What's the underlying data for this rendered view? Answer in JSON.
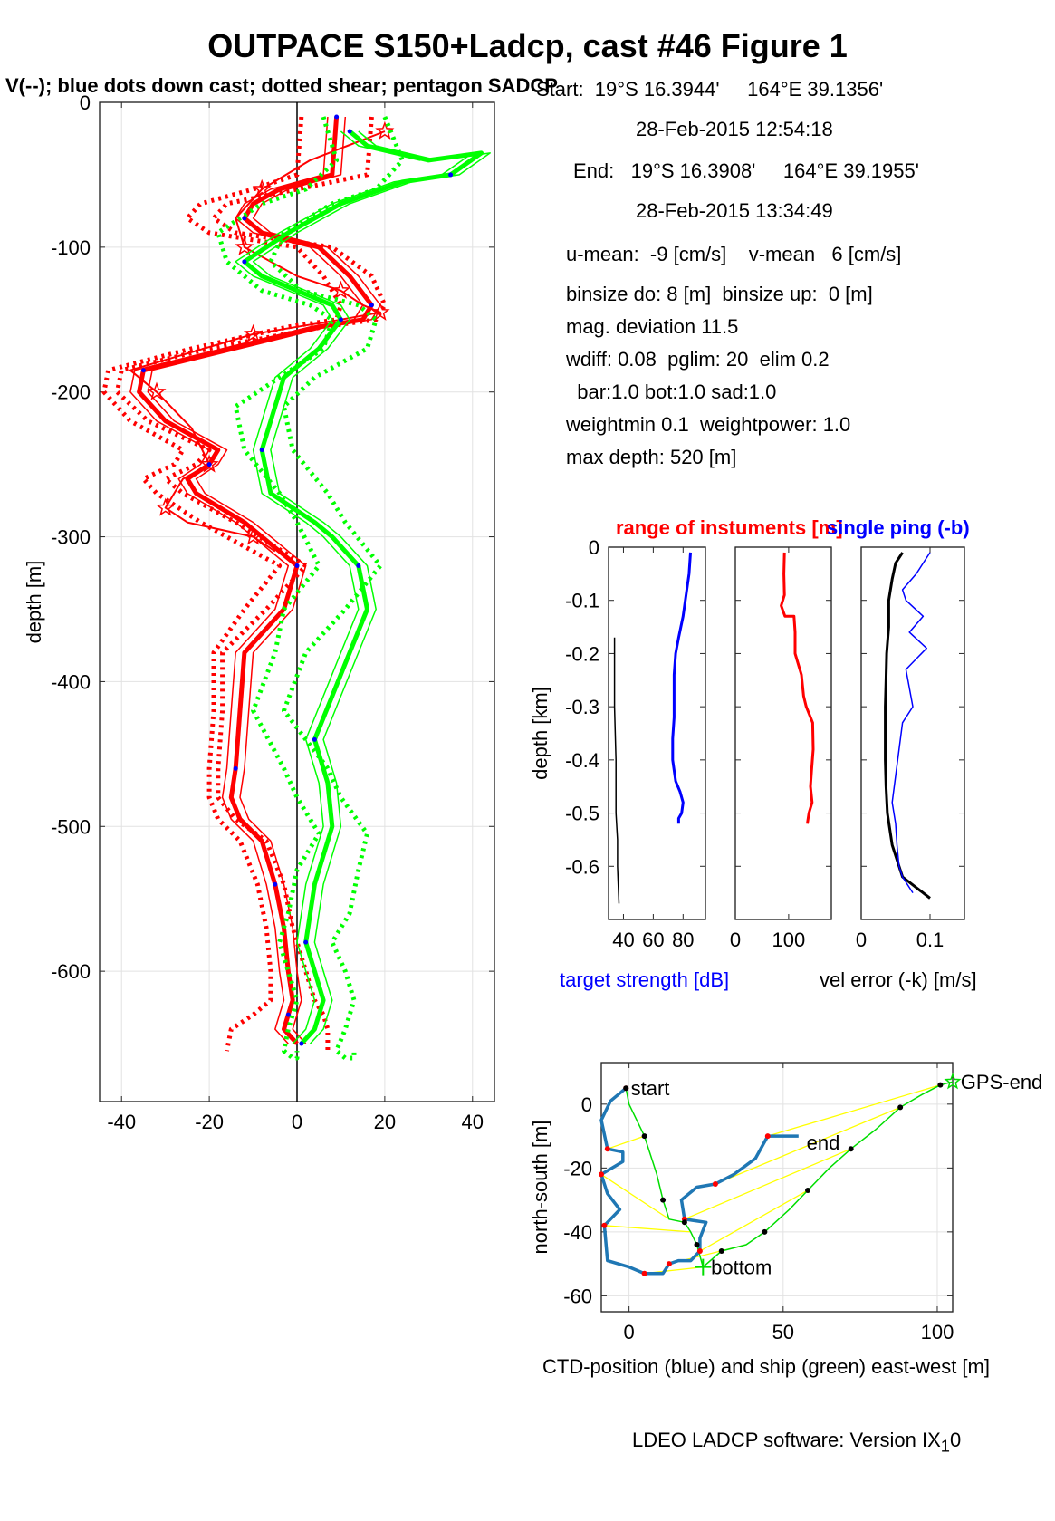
{
  "title": "OUTPACE S150+Ladcp, cast #46  Figure 1",
  "subtitle": "V(--); blue dots down cast; dotted shear; pentagon SADCP",
  "info": {
    "start": "Start:  19°S 16.3944'     164°E 39.1356'",
    "start_time": "28-Feb-2015 12:54:18",
    "end": "End:   19°S 16.3908'     164°E 39.1955'",
    "end_time": "28-Feb-2015 13:34:49",
    "means": "u-mean:  -9 [cm/s]    v-mean   6 [cm/s]",
    "binsize": "binsize do: 8 [m]  binsize up:  0 [m]",
    "magdev": "mag. deviation 11.5",
    "wdiff": "wdiff: 0.08  pglim: 20  elim 0.2",
    "bar": "  bar:1.0 bot:1.0 sad:1.0",
    "weight": "weightmin 0.1  weightpower: 1.0",
    "maxdepth": "max depth: 520 [m]"
  },
  "footer": {
    "text": "LDEO LADCP software: Version IX",
    "sub": "1",
    "tail": "0"
  },
  "colors": {
    "u": "#ff0000",
    "v": "#00ff00",
    "blue": "#0000ff",
    "ctd": "#1f77b4",
    "ship": "#00dd00",
    "link": "#ffff00"
  },
  "chart_data": [
    {
      "type": "line",
      "ylabel": "depth [m]",
      "xlim": [
        -45,
        45
      ],
      "ylim": [
        -690,
        0
      ],
      "xticks": [
        -40,
        -20,
        0,
        20,
        40
      ],
      "yticks": [
        0,
        -100,
        -200,
        -300,
        -400,
        -500,
        -600
      ],
      "xtick_labels": [
        "-40",
        "-20",
        "0",
        "20",
        "40"
      ],
      "ytick_labels": [
        "0",
        "-100",
        "-200",
        "-300",
        "-400",
        "-500",
        "-600"
      ],
      "grid": true,
      "series": [
        {
          "color": "red",
          "style": "solid",
          "x": [
            9,
            8,
            -4,
            -10,
            -12,
            -8,
            5,
            12,
            17,
            15,
            5,
            -15,
            -35,
            -36,
            -30,
            -18,
            -20,
            -25,
            -23,
            -12,
            0,
            -3,
            -12,
            -13,
            -14,
            -15,
            -13,
            -8,
            -5,
            -3,
            -2,
            -1,
            -2,
            -3,
            0
          ],
          "y": [
            -10,
            -50,
            -60,
            -70,
            -80,
            -90,
            -100,
            -120,
            -140,
            -150,
            -155,
            -170,
            -185,
            -200,
            -220,
            -240,
            -250,
            -260,
            -270,
            -290,
            -320,
            -350,
            -380,
            -420,
            -460,
            -480,
            -495,
            -510,
            -540,
            -570,
            -600,
            -620,
            -630,
            -640,
            -650
          ]
        },
        {
          "color": "red",
          "style": "dotted",
          "x": [
            17,
            16,
            0,
            -16,
            -19,
            -14,
            8,
            17,
            20,
            18,
            6,
            -20,
            -40,
            -41,
            -34,
            -20,
            -23,
            -30,
            -26,
            -14,
            2,
            -7,
            -17,
            -17,
            -18,
            -18,
            -14,
            -7,
            -3,
            -1,
            2,
            4,
            6,
            7,
            7
          ],
          "y": [
            -10,
            -50,
            -60,
            -70,
            -80,
            -90,
            -100,
            -120,
            -140,
            -150,
            -155,
            -170,
            -185,
            -200,
            -220,
            -240,
            -250,
            -260,
            -270,
            -290,
            -320,
            -350,
            -380,
            -420,
            -460,
            -480,
            -495,
            -510,
            -540,
            -570,
            -600,
            -620,
            -630,
            -640,
            -655
          ]
        },
        {
          "color": "red",
          "style": "dotted",
          "x": [
            1,
            0,
            -10,
            -22,
            -25,
            -20,
            0,
            6,
            10,
            9,
            -2,
            -24,
            -43,
            -44,
            -38,
            -26,
            -28,
            -35,
            -32,
            -22,
            -4,
            -12,
            -19,
            -19,
            -20,
            -20,
            -18,
            -13,
            -9,
            -7,
            -6,
            -6,
            -10,
            -15,
            -16
          ],
          "y": [
            -10,
            -50,
            -60,
            -70,
            -80,
            -90,
            -100,
            -120,
            -140,
            -150,
            -155,
            -170,
            -185,
            -200,
            -220,
            -240,
            -250,
            -260,
            -270,
            -290,
            -320,
            -350,
            -380,
            -420,
            -460,
            -480,
            -495,
            -510,
            -540,
            -570,
            -600,
            -620,
            -630,
            -640,
            -655
          ]
        },
        {
          "color": "red",
          "style": "star",
          "x": [
            20,
            3,
            -8,
            -14,
            -12,
            0,
            10,
            15,
            19,
            10,
            -10,
            -38,
            -32,
            -24,
            -20,
            -26,
            -30,
            -25,
            -10,
            -5
          ],
          "y": [
            -20,
            -40,
            -60,
            -80,
            -100,
            -120,
            -130,
            -140,
            -145,
            -150,
            -160,
            -185,
            -200,
            -225,
            -250,
            -260,
            -280,
            -290,
            -300,
            -310
          ]
        },
        {
          "color": "green",
          "style": "solid",
          "x": [
            12,
            16,
            30,
            42,
            35,
            24,
            10,
            -2,
            -12,
            -8,
            0,
            8,
            10,
            5,
            -3,
            -5,
            -8,
            -6,
            4,
            8,
            14,
            16,
            12,
            8,
            4,
            7,
            8,
            4,
            2,
            4,
            6,
            4,
            1
          ],
          "y": [
            -20,
            -30,
            -40,
            -35,
            -50,
            -55,
            -70,
            -90,
            -110,
            -120,
            -130,
            -140,
            -150,
            -170,
            -190,
            -210,
            -240,
            -270,
            -290,
            -300,
            -320,
            -350,
            -380,
            -410,
            -440,
            -470,
            -500,
            -540,
            -580,
            -600,
            -620,
            -640,
            -650
          ]
        },
        {
          "color": "green",
          "style": "dotted",
          "x": [
            20,
            24,
            18,
            8,
            -3,
            -6,
            1,
            14,
            18,
            16,
            4,
            -3,
            -1,
            7,
            11,
            19,
            11,
            2,
            -3,
            7,
            10,
            16,
            14,
            12,
            8,
            11,
            13,
            11,
            9,
            11,
            13,
            13,
            13
          ],
          "y": [
            -10,
            -40,
            -60,
            -70,
            -90,
            -110,
            -130,
            -140,
            -150,
            -170,
            -190,
            -210,
            -240,
            -270,
            -290,
            -320,
            -350,
            -380,
            -420,
            -460,
            -480,
            -505,
            -530,
            -560,
            -580,
            -600,
            -620,
            -640,
            -655,
            -660,
            -660,
            -660,
            -655
          ]
        },
        {
          "color": "green",
          "style": "dotted",
          "x": [
            6,
            9,
            2,
            -8,
            -18,
            -16,
            -8,
            3,
            8,
            6,
            -4,
            -14,
            -12,
            -4,
            0,
            5,
            -3,
            -5,
            -10,
            -3,
            0,
            5,
            0,
            -2,
            -4,
            -2,
            0,
            -2,
            -3,
            -1,
            0,
            0,
            0
          ],
          "y": [
            -10,
            -40,
            -60,
            -70,
            -90,
            -110,
            -130,
            -140,
            -150,
            -170,
            -190,
            -210,
            -240,
            -270,
            -290,
            -320,
            -350,
            -380,
            -420,
            -460,
            -480,
            -505,
            -530,
            -560,
            -580,
            -600,
            -620,
            -640,
            -655,
            -660,
            -660,
            -660,
            -655
          ]
        }
      ]
    },
    {
      "type": "line",
      "title": "range of instuments [m]",
      "xlabel": "target strength [dB]",
      "ylabel": "depth [km]",
      "xticks": [
        40,
        60,
        80
      ],
      "xtick_labels": [
        "40",
        "60",
        "80"
      ],
      "yticks": [
        0,
        -0.1,
        -0.2,
        -0.3,
        -0.4,
        -0.5,
        -0.6
      ],
      "ytick_labels": [
        "0",
        "-0.1",
        "-0.2",
        "-0.3",
        "-0.4",
        "-0.5",
        "-0.6"
      ],
      "xlim": [
        30,
        95
      ],
      "ylim": [
        -0.7,
        0
      ],
      "series": [
        {
          "color": "blue",
          "x": [
            85,
            84,
            82,
            80,
            77,
            75,
            74,
            74,
            74,
            73,
            73,
            75,
            78,
            80,
            79,
            77,
            77
          ],
          "y": [
            -0.01,
            -0.05,
            -0.09,
            -0.13,
            -0.17,
            -0.2,
            -0.24,
            -0.28,
            -0.32,
            -0.36,
            -0.4,
            -0.44,
            -0.46,
            -0.48,
            -0.5,
            -0.51,
            -0.52
          ]
        },
        {
          "color": "black",
          "x": [
            34,
            34,
            35,
            35,
            36,
            36,
            37
          ],
          "y": [
            -0.17,
            -0.3,
            -0.4,
            -0.5,
            -0.55,
            -0.6,
            -0.67
          ]
        }
      ]
    },
    {
      "type": "line",
      "xticks": [
        0,
        100
      ],
      "xtick_labels": [
        "0",
        "100"
      ],
      "xlim": [
        0,
        180
      ],
      "ylim": [
        -0.7,
        0
      ],
      "series": [
        {
          "color": "red",
          "x": [
            92,
            91,
            92,
            86,
            93,
            110,
            112,
            112,
            124,
            128,
            133,
            145,
            146,
            143,
            141,
            144,
            138,
            135
          ],
          "y": [
            -0.01,
            -0.05,
            -0.09,
            -0.11,
            -0.13,
            -0.13,
            -0.16,
            -0.2,
            -0.24,
            -0.28,
            -0.3,
            -0.33,
            -0.38,
            -0.42,
            -0.45,
            -0.48,
            -0.5,
            -0.52
          ]
        }
      ]
    },
    {
      "type": "line",
      "title": "single ping (-b)",
      "xlabel": "vel error (-k) [m/s]",
      "xticks": [
        0,
        0.1
      ],
      "xtick_labels": [
        "0",
        "0.1"
      ],
      "xlim": [
        0,
        0.15
      ],
      "ylim": [
        -0.7,
        0
      ],
      "series": [
        {
          "color": "black",
          "x": [
            0.06,
            0.05,
            0.045,
            0.04,
            0.04,
            0.037,
            0.036,
            0.035,
            0.035,
            0.035,
            0.036,
            0.038,
            0.045,
            0.06,
            0.08,
            0.1
          ],
          "y": [
            -0.01,
            -0.03,
            -0.06,
            -0.1,
            -0.15,
            -0.2,
            -0.25,
            -0.3,
            -0.35,
            -0.4,
            -0.45,
            -0.5,
            -0.56,
            -0.62,
            -0.64,
            -0.66
          ]
        },
        {
          "color": "blue",
          "x": [
            0.1,
            0.08,
            0.06,
            0.065,
            0.09,
            0.07,
            0.095,
            0.065,
            0.075,
            0.06,
            0.055,
            0.05,
            0.045,
            0.05,
            0.052,
            0.055,
            0.06,
            0.075
          ],
          "y": [
            -0.01,
            -0.05,
            -0.08,
            -0.1,
            -0.13,
            -0.16,
            -0.19,
            -0.23,
            -0.3,
            -0.33,
            -0.38,
            -0.43,
            -0.48,
            -0.52,
            -0.56,
            -0.6,
            -0.62,
            -0.65
          ]
        }
      ]
    },
    {
      "type": "line",
      "xlabel": "CTD-position (blue) and ship (green) east-west [m]",
      "ylabel": "north-south [m]",
      "xticks": [
        0,
        50,
        100
      ],
      "xtick_labels": [
        "0",
        "50",
        "100"
      ],
      "yticks": [
        0,
        -20,
        -40,
        -60
      ],
      "ytick_labels": [
        "0",
        "-20",
        "-40",
        "-60"
      ],
      "xlim": [
        -9,
        105
      ],
      "ylim": [
        -65,
        13
      ],
      "annotations": [
        {
          "text": "start",
          "x": 0,
          "y": 5
        },
        {
          "text": "end",
          "x": 57,
          "y": -12
        },
        {
          "text": "GPS-end",
          "x": 107,
          "y": 7
        },
        {
          "text": "bottom",
          "x": 26,
          "y": -51
        }
      ],
      "series": [
        {
          "name": "CTD",
          "color": "blue",
          "x": [
            -1,
            -6,
            -9,
            -7,
            -2,
            -2,
            -9,
            -7,
            -3,
            -8,
            -7,
            0,
            5,
            8,
            11,
            13,
            16,
            20,
            23,
            23,
            25,
            18,
            17,
            22,
            28,
            34,
            41,
            45,
            55
          ],
          "y": [
            5,
            1,
            -5,
            -14,
            -15,
            -18,
            -22,
            -28,
            -33,
            -38,
            -49,
            -51,
            -53,
            -53,
            -53,
            -50,
            -49,
            -49,
            -46,
            -42,
            -37,
            -36,
            -30,
            -26,
            -25,
            -22,
            -17,
            -10,
            -10
          ]
        },
        {
          "name": "ship",
          "color": "green",
          "x": [
            -1,
            0,
            5,
            9,
            11,
            13,
            18,
            20,
            22,
            24,
            30,
            38,
            44,
            52,
            58,
            65,
            72,
            80,
            88,
            95,
            101,
            105
          ],
          "y": [
            5,
            0,
            -10,
            -22,
            -30,
            -36,
            -37,
            -40,
            -44,
            -51,
            -46,
            -44,
            -40,
            -33,
            -27,
            -20,
            -14,
            -8,
            -1,
            3,
            6,
            7
          ]
        }
      ]
    }
  ]
}
